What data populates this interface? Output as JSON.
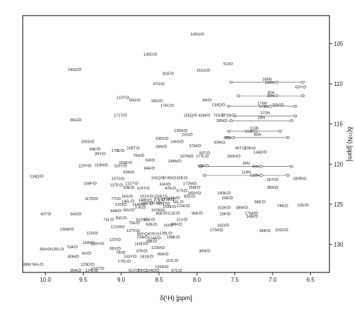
{
  "chart_data": {
    "type": "scatter",
    "title": "",
    "xlabel": "δ(¹H) [ppm]",
    "ylabel": "δ(¹⁵N) [ppm]",
    "xlim": [
      10.3,
      6.25
    ],
    "ylim": [
      101.5,
      133.5
    ],
    "x_reversed": true,
    "y_reversed": true,
    "grid": false,
    "x_ticks": [
      10.0,
      9.5,
      9.0,
      8.5,
      8.0,
      7.5,
      7.0,
      6.5
    ],
    "x_tick_labels": [
      "10.0",
      "9.5",
      "9.0",
      "8.5",
      "8.0",
      "7.5",
      "7.0",
      "6.5"
    ],
    "y_ticks": [
      105,
      110,
      115,
      120,
      125,
      130
    ],
    "y_tick_labels": [
      "105",
      "110",
      "115",
      "120",
      "125",
      "130"
    ],
    "peaks": [
      {
        "label": "105G",
        "x": 7.93,
        "y": 103.8
      },
      {
        "label": "130G",
        "x": 8.55,
        "y": 106.3
      },
      {
        "label": "51I",
        "x": 7.55,
        "y": 107.5
      },
      {
        "label": "140G",
        "x": 9.55,
        "y": 108.2
      },
      {
        "label": "161G",
        "x": 7.85,
        "y": 108.3
      },
      {
        "label": "81E",
        "x": 8.33,
        "y": 108.7
      },
      {
        "label": "97G",
        "x": 8.45,
        "y": 110.0
      },
      {
        "label": "166N",
        "x": 6.95,
        "y": 109.8
      },
      {
        "label": "63Y",
        "x": 6.58,
        "y": 110.4
      },
      {
        "label": "110T",
        "x": 8.92,
        "y": 111.7
      },
      {
        "label": "55G",
        "x": 8.77,
        "y": 112.0
      },
      {
        "label": "18G",
        "x": 8.48,
        "y": 112.1
      },
      {
        "label": "176C",
        "x": 8.33,
        "y": 112.7
      },
      {
        "label": "30N",
        "x": 6.95,
        "y": 111.5
      },
      {
        "label": "34I",
        "x": 7.83,
        "y": 112.0
      },
      {
        "label": "134Q",
        "x": 7.65,
        "y": 112.6
      },
      {
        "label": "174N",
        "x": 7.03,
        "y": 112.8
      },
      {
        "label": "59V",
        "x": 6.88,
        "y": 112.6
      },
      {
        "label": "155Q",
        "x": 8.02,
        "y": 113.9
      },
      {
        "label": "42M",
        "x": 7.85,
        "y": 113.9
      },
      {
        "label": "70S",
        "x": 7.66,
        "y": 113.9
      },
      {
        "label": "172N",
        "x": 7.52,
        "y": 113.9
      },
      {
        "label": "171T",
        "x": 8.95,
        "y": 113.9
      },
      {
        "label": "36G",
        "x": 9.55,
        "y": 114.5
      },
      {
        "label": "28N",
        "x": 7.62,
        "y": 114.6
      },
      {
        "label": "126N",
        "x": 8.15,
        "y": 115.8
      },
      {
        "label": "113K",
        "x": 7.22,
        "y": 115.9
      },
      {
        "label": "23S",
        "x": 8.08,
        "y": 116.3
      },
      {
        "label": "80N",
        "x": 7.52,
        "y": 116.7
      },
      {
        "label": "106S",
        "x": 8.4,
        "y": 116.8
      },
      {
        "label": "146S",
        "x": 8.2,
        "y": 117.2
      },
      {
        "label": "28N",
        "x": 8.42,
        "y": 117.8
      },
      {
        "label": "57M",
        "x": 7.97,
        "y": 117.7
      },
      {
        "label": "69N",
        "x": 7.65,
        "y": 117.3
      },
      {
        "label": "45T",
        "x": 7.38,
        "y": 118.0
      },
      {
        "label": "33K",
        "x": 7.25,
        "y": 118.0
      },
      {
        "label": "144D",
        "x": 7.1,
        "y": 118.5
      },
      {
        "label": "100S",
        "x": 9.38,
        "y": 117.2
      },
      {
        "label": "49E",
        "x": 9.3,
        "y": 118.1
      },
      {
        "label": "178E",
        "x": 8.98,
        "y": 118.3
      },
      {
        "label": "108T",
        "x": 8.78,
        "y": 118.0
      },
      {
        "label": "39Y",
        "x": 9.23,
        "y": 118.7
      },
      {
        "label": "76H",
        "x": 8.72,
        "y": 118.9
      },
      {
        "label": "93T",
        "x": 7.85,
        "y": 118.6
      },
      {
        "label": "107N",
        "x": 8.07,
        "y": 119.0
      },
      {
        "label": "177L",
        "x": 7.87,
        "y": 119.0
      },
      {
        "label": "160H",
        "x": 7.45,
        "y": 119.0
      },
      {
        "label": "165E",
        "x": 8.88,
        "y": 119.8
      },
      {
        "label": "64I",
        "x": 8.58,
        "y": 119.5
      },
      {
        "label": "148N",
        "x": 8.23,
        "y": 119.6
      },
      {
        "label": "119Y",
        "x": 9.42,
        "y": 120.2
      },
      {
        "label": "118N",
        "x": 9.2,
        "y": 120.1
      },
      {
        "label": "116Y",
        "x": 8.95,
        "y": 120.2
      },
      {
        "label": "94E",
        "x": 8.58,
        "y": 120.5
      },
      {
        "label": "50K",
        "x": 7.87,
        "y": 120.2
      },
      {
        "label": "36N",
        "x": 7.15,
        "y": 120.3
      },
      {
        "label": "69N",
        "x": 8.85,
        "y": 121.0
      },
      {
        "label": "118N",
        "x": 7.15,
        "y": 121.4
      },
      {
        "label": "134Q",
        "x": 10.05,
        "y": 121.5
      },
      {
        "label": "147S",
        "x": 8.98,
        "y": 121.8
      },
      {
        "label": "155Q",
        "x": 8.45,
        "y": 121.7
      },
      {
        "label": "174N",
        "x": 8.3,
        "y": 121.7
      },
      {
        "label": "32E",
        "x": 8.15,
        "y": 121.7
      },
      {
        "label": "167I",
        "x": 6.95,
        "y": 121.9
      },
      {
        "label": "180R",
        "x": 6.58,
        "y": 121.8
      },
      {
        "label": "109F",
        "x": 9.35,
        "y": 122.4
      },
      {
        "label": "137E",
        "x": 9.0,
        "y": 122.6
      },
      {
        "label": "132T",
        "x": 8.8,
        "y": 122.4
      },
      {
        "label": "43H",
        "x": 8.37,
        "y": 122.5
      },
      {
        "label": "172N",
        "x": 8.03,
        "y": 122.4
      },
      {
        "label": "53E",
        "x": 8.85,
        "y": 122.9
      },
      {
        "label": "114T",
        "x": 8.65,
        "y": 123.0
      },
      {
        "label": "42E",
        "x": 8.3,
        "y": 123.0
      },
      {
        "label": "25M",
        "x": 7.98,
        "y": 122.9
      },
      {
        "label": "35N",
        "x": 6.95,
        "y": 122.9
      },
      {
        "label": "57S",
        "x": 8.15,
        "y": 123.3
      },
      {
        "label": "163V",
        "x": 7.97,
        "y": 123.6
      },
      {
        "label": "150K",
        "x": 7.58,
        "y": 123.6
      },
      {
        "label": "56S",
        "x": 8.87,
        "y": 124.0
      },
      {
        "label": "101V",
        "x": 8.6,
        "y": 124.0
      },
      {
        "label": "153E",
        "x": 8.42,
        "y": 124.0
      },
      {
        "label": "82E",
        "x": 8.05,
        "y": 124.0
      },
      {
        "label": "117D",
        "x": 9.33,
        "y": 124.3
      },
      {
        "label": "77I",
        "x": 9.03,
        "y": 124.3
      },
      {
        "label": "145L",
        "x": 8.85,
        "y": 124.6
      },
      {
        "label": "148D",
        "x": 8.62,
        "y": 124.5
      },
      {
        "label": "37E",
        "x": 8.45,
        "y": 124.4
      },
      {
        "label": "175E",
        "x": 8.32,
        "y": 124.4
      },
      {
        "label": "166N",
        "x": 8.25,
        "y": 124.2
      },
      {
        "label": "26E",
        "x": 7.55,
        "y": 124.2
      },
      {
        "label": "98E",
        "x": 7.12,
        "y": 124.7
      },
      {
        "label": "120I",
        "x": 8.95,
        "y": 125.0
      },
      {
        "label": "128F",
        "x": 8.6,
        "y": 124.9
      },
      {
        "label": "141I",
        "x": 8.5,
        "y": 124.8
      },
      {
        "label": "158D",
        "x": 8.38,
        "y": 124.9
      },
      {
        "label": "56L",
        "x": 8.2,
        "y": 124.7
      },
      {
        "label": "27K",
        "x": 8.7,
        "y": 125.4
      },
      {
        "label": "164D",
        "x": 8.7,
        "y": 125.0
      },
      {
        "label": "159E",
        "x": 8.3,
        "y": 125.3
      },
      {
        "label": "131E",
        "x": 8.12,
        "y": 125.2
      },
      {
        "label": "74K",
        "x": 6.82,
        "y": 125.2
      },
      {
        "label": "52E",
        "x": 6.55,
        "y": 125.1
      },
      {
        "label": "44A",
        "x": 9.02,
        "y": 125.8
      },
      {
        "label": "66V",
        "x": 8.85,
        "y": 125.7
      },
      {
        "label": "107N",
        "x": 8.45,
        "y": 125.7
      },
      {
        "label": "152K",
        "x": 7.58,
        "y": 125.4
      },
      {
        "label": "38W",
        "x": 7.35,
        "y": 125.4
      },
      {
        "label": "40T",
        "x": 9.95,
        "y": 126.2
      },
      {
        "label": "84S",
        "x": 9.55,
        "y": 126.2
      },
      {
        "label": "85E",
        "x": 8.42,
        "y": 126.1
      },
      {
        "label": "111E",
        "x": 8.25,
        "y": 126.1
      },
      {
        "label": "96K",
        "x": 7.95,
        "y": 126.1
      },
      {
        "label": "29F",
        "x": 7.58,
        "y": 126.2
      },
      {
        "label": "179A",
        "x": 7.22,
        "y": 126.1
      },
      {
        "label": "149I",
        "x": 7.22,
        "y": 126.5
      },
      {
        "label": "83C",
        "x": 8.95,
        "y": 126.7
      },
      {
        "label": "91D",
        "x": 8.68,
        "y": 126.9
      },
      {
        "label": "63E",
        "x": 8.58,
        "y": 126.9
      },
      {
        "label": "31V",
        "x": 8.15,
        "y": 126.9
      },
      {
        "label": "73L",
        "x": 9.12,
        "y": 126.9
      },
      {
        "label": "75E",
        "x": 8.78,
        "y": 127.3
      },
      {
        "label": "62E",
        "x": 8.55,
        "y": 127.5
      },
      {
        "label": "16I",
        "x": 8.34,
        "y": 127.6
      },
      {
        "label": "48R",
        "x": 8.22,
        "y": 127.5
      },
      {
        "label": "162I",
        "x": 7.6,
        "y": 127.6
      },
      {
        "label": "121M",
        "x": 8.98,
        "y": 127.8
      },
      {
        "label": "136M",
        "x": 9.65,
        "y": 128.1
      },
      {
        "label": "127V",
        "x": 8.78,
        "y": 128.3
      },
      {
        "label": "173A",
        "x": 7.68,
        "y": 128.2
      },
      {
        "label": "58R",
        "x": 7.05,
        "y": 128.3
      },
      {
        "label": "115D",
        "x": 6.82,
        "y": 128.2
      },
      {
        "label": "125I",
        "x": 9.33,
        "y": 128.6
      },
      {
        "label": "99Y",
        "x": 8.67,
        "y": 128.7
      },
      {
        "label": "87E",
        "x": 8.52,
        "y": 128.7
      },
      {
        "label": "138L",
        "x": 8.35,
        "y": 128.6
      },
      {
        "label": "22A",
        "x": 8.67,
        "y": 129.1
      },
      {
        "label": "154A",
        "x": 8.5,
        "y": 129.2
      },
      {
        "label": "158E",
        "x": 8.25,
        "y": 129.1
      },
      {
        "label": "122I",
        "x": 9.03,
        "y": 129.4
      },
      {
        "label": "139Y",
        "x": 9.25,
        "y": 129.9
      },
      {
        "label": "169D",
        "x": 8.67,
        "y": 129.9
      },
      {
        "label": "28K",
        "x": 8.55,
        "y": 129.6
      },
      {
        "label": "168I",
        "x": 9.38,
        "y": 129.8
      },
      {
        "label": "72A",
        "x": 9.6,
        "y": 130.3
      },
      {
        "label": "65H",
        "x": 9.95,
        "y": 130.6
      },
      {
        "label": "135L",
        "x": 9.78,
        "y": 130.6
      },
      {
        "label": "123H",
        "x": 8.45,
        "y": 130.4
      },
      {
        "label": "66V",
        "x": 9.03,
        "y": 130.5
      },
      {
        "label": "47K",
        "x": 8.68,
        "y": 130.8
      },
      {
        "label": "30N",
        "x": 7.85,
        "y": 130.8
      },
      {
        "label": "41I",
        "x": 9.42,
        "y": 131.1
      },
      {
        "label": "78I",
        "x": 8.97,
        "y": 131.0
      },
      {
        "label": "96A",
        "x": 8.4,
        "y": 131.2
      },
      {
        "label": "80N",
        "x": 9.58,
        "y": 131.5
      },
      {
        "label": "103Y",
        "x": 8.82,
        "y": 131.5
      },
      {
        "label": "181E",
        "x": 8.6,
        "y": 131.5
      },
      {
        "label": "170L",
        "x": 8.9,
        "y": 132.1
      },
      {
        "label": "112L",
        "x": 8.27,
        "y": 132.0
      },
      {
        "label": "38W NH₂",
        "x": 10.05,
        "y": 132.5
      },
      {
        "label": "129D",
        "x": 9.38,
        "y": 132.5
      },
      {
        "label": "126N",
        "x": 8.4,
        "y": 132.8
      },
      {
        "label": "102T",
        "x": 9.25,
        "y": 133.0
      },
      {
        "label": "104D",
        "x": 8.52,
        "y": 133.3
      },
      {
        "label": "90A",
        "x": 9.55,
        "y": 133.8
      },
      {
        "label": "61V",
        "x": 8.78,
        "y": 134.0
      },
      {
        "label": "79I",
        "x": 8.68,
        "y": 134.0
      },
      {
        "label": "67L",
        "x": 8.22,
        "y": 135.0
      },
      {
        "label": "124L",
        "x": 9.33,
        "y": 136.2
      }
    ],
    "side_chain_pairs": [
      {
        "label": "166N",
        "y": 109.8,
        "x_from": 7.55,
        "x_to": 6.6
      },
      {
        "label": "30N",
        "y": 111.5,
        "x_from": 7.45,
        "x_to": 6.6
      },
      {
        "label": "174N",
        "y": 112.8,
        "x_from": 7.58,
        "x_to": 6.7
      },
      {
        "label": "172N",
        "y": 114.0,
        "x_from": 7.5,
        "x_to": 6.7
      },
      {
        "label": "28N",
        "y": 114.6,
        "x_from": 7.55,
        "x_to": 6.75
      },
      {
        "label": "113K",
        "y": 115.9,
        "x_from": 7.58,
        "x_to": 6.9
      },
      {
        "label": "80N",
        "y": 116.7,
        "x_from": 7.6,
        "x_to": 6.8
      },
      {
        "label": "36N",
        "y": 120.3,
        "x_from": 7.95,
        "x_to": 6.75
      },
      {
        "label": "118N",
        "y": 121.4,
        "x_from": 7.9,
        "x_to": 6.8
      }
    ]
  }
}
